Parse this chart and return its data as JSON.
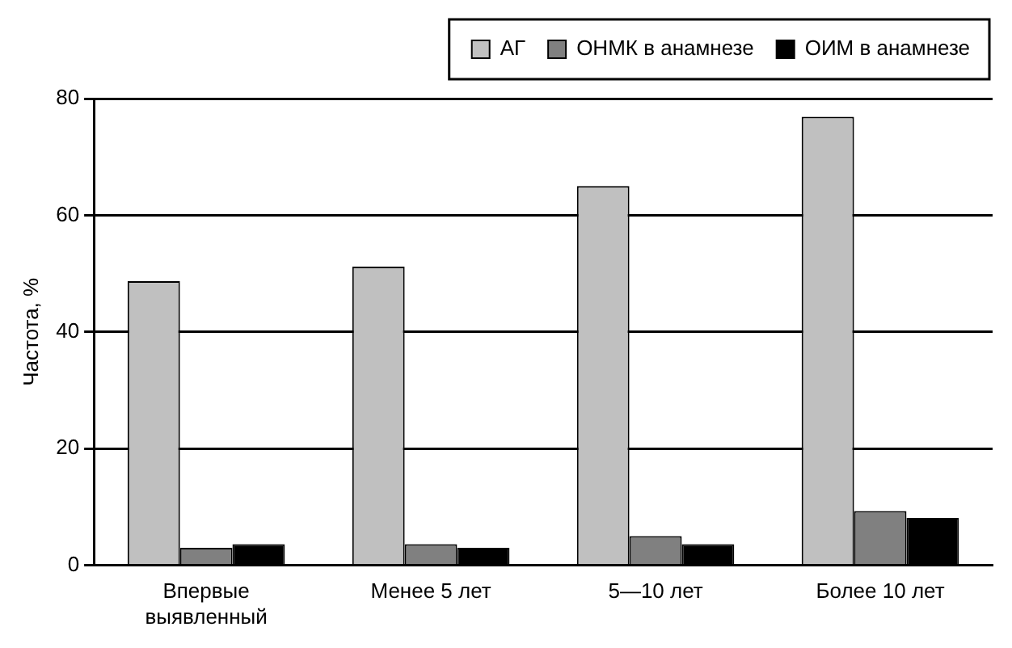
{
  "chart_data": {
    "type": "bar",
    "ylabel": "Частота, %",
    "categories": [
      "Впервые выявленный",
      "Менее 5 лет",
      "5—10 лет",
      "Более 10 лет"
    ],
    "series": [
      {
        "name": "АГ",
        "color": "#c0c0c0",
        "values": [
          48.7,
          51.2,
          65,
          76.9
        ]
      },
      {
        "name": "ОНМК в анамнезе",
        "color": "#808080",
        "values": [
          3,
          3.6,
          5,
          9.3
        ]
      },
      {
        "name": "ОИМ в анамнезе",
        "color": "#000000",
        "values": [
          3.6,
          3,
          3.6,
          8.1
        ]
      }
    ],
    "ylim": [
      0,
      80
    ],
    "yticks": [
      0,
      20,
      40,
      60,
      80
    ],
    "grid": "y",
    "legend": "top right"
  }
}
